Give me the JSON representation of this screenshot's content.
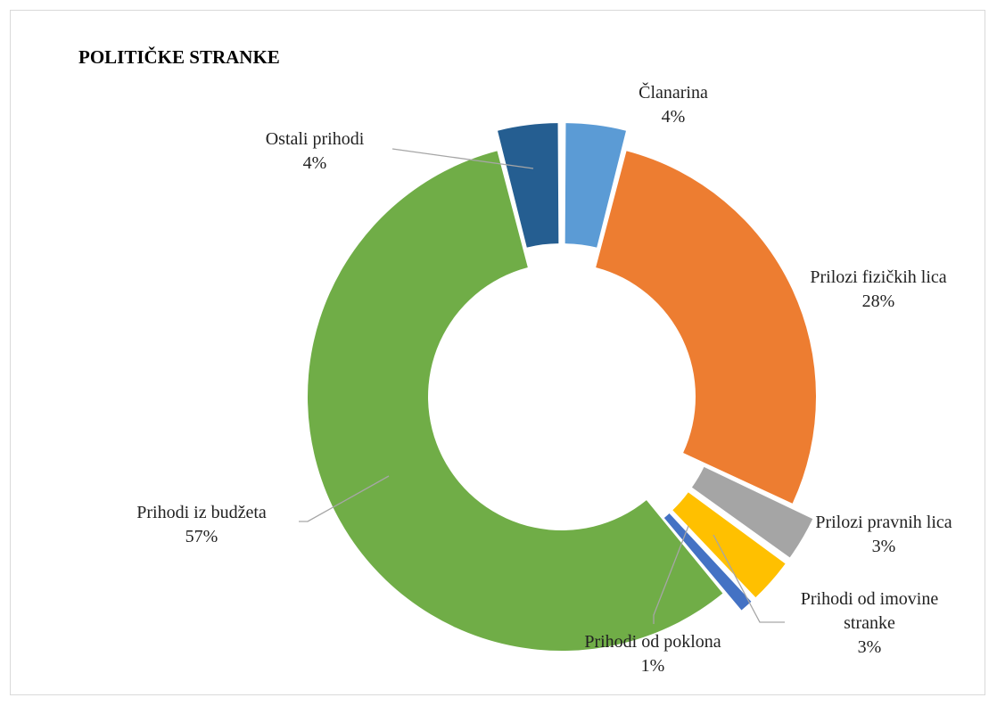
{
  "chart_data": {
    "type": "pie",
    "title": "POLITIČKE STRANKE",
    "slices": [
      {
        "label": "Članarina",
        "pct_label": "4%",
        "value": 4,
        "color": "#5B9BD5"
      },
      {
        "label": "Prilozi fizičkih lica",
        "pct_label": "28%",
        "value": 28,
        "color": "#ED7D31"
      },
      {
        "label": "Prilozi pravnih lica",
        "pct_label": "3%",
        "value": 3,
        "color": "#A5A5A5"
      },
      {
        "label": "Prihodi od imovine stranke",
        "pct_label": "3%",
        "value": 3,
        "color": "#FFC000"
      },
      {
        "label": "Prihodi od poklona",
        "pct_label": "1%",
        "value": 1,
        "color": "#4472C4"
      },
      {
        "label": "Prihodi iz budžeta",
        "pct_label": "57%",
        "value": 57,
        "color": "#70AD47"
      },
      {
        "label": "Ostali prihodi",
        "pct_label": "4%",
        "value": 4,
        "color": "#255E91"
      }
    ],
    "legend": "none"
  }
}
